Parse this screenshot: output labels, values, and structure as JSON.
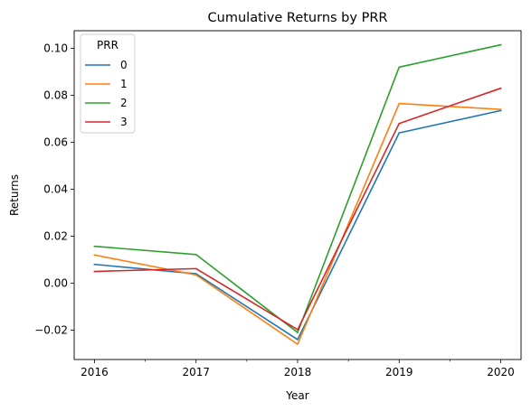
{
  "chart_data": {
    "type": "line",
    "title": "Cumulative Returns by PRR",
    "xlabel": "Year",
    "ylabel": "Returns",
    "x": [
      2016,
      2017,
      2018,
      2019,
      2020
    ],
    "x_tick_labels": [
      "2016",
      "2017",
      "2018",
      "2019",
      "2020"
    ],
    "xlim": [
      2015.8,
      2020.2
    ],
    "ylim": [
      -0.0325,
      0.1075
    ],
    "y_ticks": [
      -0.02,
      0.0,
      0.02,
      0.04,
      0.06,
      0.08,
      0.1
    ],
    "y_tick_labels": [
      "−0.02",
      "0.00",
      "0.02",
      "0.04",
      "0.06",
      "0.08",
      "0.10"
    ],
    "grid": false,
    "legend": {
      "title": "PRR",
      "placement": "upper-left"
    },
    "series": [
      {
        "name": "0",
        "color": "#1f77b4",
        "values": [
          0.008,
          0.004,
          -0.024,
          0.064,
          0.0735
        ]
      },
      {
        "name": "1",
        "color": "#ff7f0e",
        "values": [
          0.012,
          0.0035,
          -0.026,
          0.0765,
          0.074
        ]
      },
      {
        "name": "2",
        "color": "#2ca02c",
        "values": [
          0.0157,
          0.0122,
          -0.021,
          0.092,
          0.1015
        ]
      },
      {
        "name": "3",
        "color": "#d62728",
        "values": [
          0.005,
          0.0062,
          -0.0198,
          0.068,
          0.083
        ]
      }
    ]
  }
}
